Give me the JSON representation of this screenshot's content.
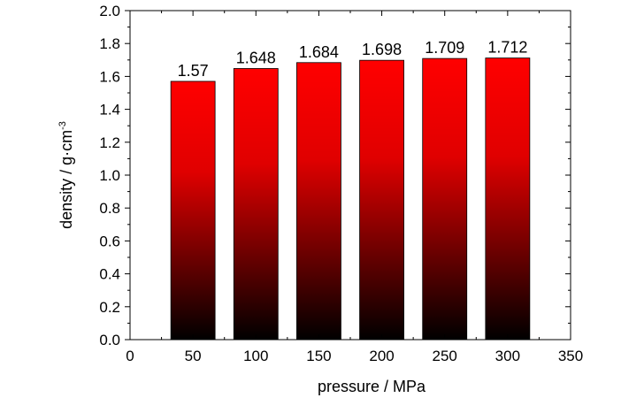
{
  "chart_data": {
    "type": "bar",
    "x": [
      50,
      100,
      150,
      200,
      250,
      300
    ],
    "values": [
      1.57,
      1.648,
      1.684,
      1.698,
      1.709,
      1.712
    ],
    "data_labels": [
      "1.57",
      "1.648",
      "1.684",
      "1.698",
      "1.709",
      "1.712"
    ],
    "xlabel": "pressure / MPa",
    "ylabel": "density / g·cm",
    "ylabel_superscript": "-3",
    "xlim": [
      0,
      350
    ],
    "ylim": [
      0.0,
      2.0
    ],
    "xticks": [
      0,
      50,
      100,
      150,
      200,
      250,
      300,
      350
    ],
    "yticks": [
      0.0,
      0.2,
      0.4,
      0.6,
      0.8,
      1.0,
      1.2,
      1.4,
      1.6,
      1.8,
      2.0
    ],
    "ytick_labels": [
      "0.0",
      "0.2",
      "0.4",
      "0.6",
      "0.8",
      "1.0",
      "1.2",
      "1.4",
      "1.6",
      "1.8",
      "2.0"
    ],
    "bar_color_top": "#ff0000",
    "bar_color_bottom": "#000000",
    "grid": false,
    "legend": "none"
  }
}
